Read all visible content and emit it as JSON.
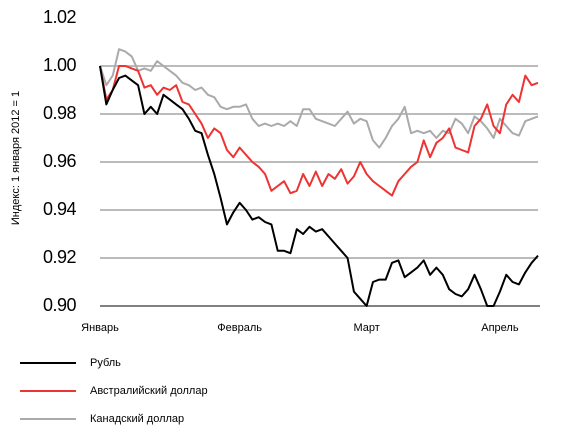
{
  "chart_data": {
    "type": "line",
    "y_label": "Индекс: 1 января 2012 = 1",
    "categories": [
      "Январь",
      null,
      null,
      null,
      null,
      null,
      null,
      null,
      null,
      null,
      null,
      null,
      null,
      null,
      null,
      null,
      null,
      null,
      null,
      null,
      null,
      null,
      "Февраль",
      null,
      null,
      null,
      null,
      null,
      null,
      null,
      null,
      null,
      null,
      null,
      null,
      null,
      null,
      null,
      null,
      null,
      null,
      null,
      "Март",
      null,
      null,
      null,
      null,
      null,
      null,
      null,
      null,
      null,
      null,
      null,
      null,
      null,
      null,
      null,
      null,
      null,
      null,
      null,
      null,
      "Апрель",
      null,
      null,
      null,
      null,
      null,
      null
    ],
    "series": [
      {
        "name": "Рубль",
        "color": "#000000",
        "values": [
          1.0,
          0.984,
          0.99,
          0.995,
          0.996,
          0.994,
          0.992,
          0.98,
          0.983,
          0.98,
          0.988,
          0.986,
          0.984,
          0.982,
          0.978,
          0.973,
          0.972,
          0.963,
          0.955,
          0.945,
          0.934,
          0.939,
          0.943,
          0.94,
          0.936,
          0.937,
          0.935,
          0.934,
          0.923,
          0.923,
          0.922,
          0.932,
          0.93,
          0.933,
          0.931,
          0.932,
          0.929,
          0.926,
          0.923,
          0.92,
          0.906,
          0.903,
          0.9,
          0.91,
          0.911,
          0.911,
          0.918,
          0.919,
          0.912,
          0.914,
          0.916,
          0.919,
          0.913,
          0.916,
          0.913,
          0.907,
          0.905,
          0.904,
          0.907,
          0.913,
          0.907,
          0.9,
          0.9,
          0.906,
          0.913,
          0.91,
          0.909,
          0.914,
          0.918,
          0.921
        ]
      },
      {
        "name": "Австралийский доллар",
        "color": "#ee3333",
        "values": [
          1.0,
          0.986,
          0.99,
          1.0,
          1.0,
          0.999,
          0.998,
          0.991,
          0.992,
          0.988,
          0.991,
          0.99,
          0.992,
          0.985,
          0.984,
          0.98,
          0.976,
          0.97,
          0.974,
          0.972,
          0.965,
          0.962,
          0.966,
          0.963,
          0.96,
          0.958,
          0.955,
          0.948,
          0.95,
          0.952,
          0.947,
          0.948,
          0.955,
          0.95,
          0.956,
          0.95,
          0.955,
          0.953,
          0.957,
          0.951,
          0.954,
          0.96,
          0.955,
          0.952,
          0.95,
          0.948,
          0.946,
          0.952,
          0.955,
          0.958,
          0.96,
          0.969,
          0.962,
          0.968,
          0.97,
          0.974,
          0.966,
          0.965,
          0.964,
          0.975,
          0.978,
          0.984,
          0.975,
          0.972,
          0.984,
          0.988,
          0.985,
          0.996,
          0.992,
          0.993
        ]
      },
      {
        "name": "Канадский доллар",
        "color": "#aaaaaa",
        "values": [
          1.0,
          0.992,
          0.996,
          1.007,
          1.006,
          1.004,
          0.998,
          0.999,
          0.998,
          1.002,
          1.0,
          0.998,
          0.996,
          0.993,
          0.992,
          0.99,
          0.991,
          0.988,
          0.987,
          0.983,
          0.982,
          0.983,
          0.983,
          0.984,
          0.978,
          0.975,
          0.976,
          0.975,
          0.976,
          0.975,
          0.977,
          0.975,
          0.982,
          0.982,
          0.978,
          0.977,
          0.976,
          0.975,
          0.978,
          0.981,
          0.976,
          0.978,
          0.977,
          0.969,
          0.966,
          0.97,
          0.975,
          0.978,
          0.983,
          0.972,
          0.973,
          0.972,
          0.973,
          0.97,
          0.973,
          0.972,
          0.978,
          0.976,
          0.972,
          0.979,
          0.977,
          0.974,
          0.97,
          0.978,
          0.975,
          0.972,
          0.971,
          0.977,
          0.978,
          0.979
        ]
      }
    ],
    "ylim": [
      0.9,
      1.02
    ],
    "yticks": [
      {
        "value": 0.9,
        "label": "0.90"
      },
      {
        "value": 0.92,
        "label": "0.92"
      },
      {
        "value": 0.94,
        "label": "0.94"
      },
      {
        "value": 0.96,
        "label": "0.96"
      },
      {
        "value": 0.98,
        "label": "0.98"
      },
      {
        "value": 1.0,
        "label": "1.00"
      },
      {
        "value": 1.02,
        "label": "1.02"
      }
    ],
    "grid": true
  }
}
